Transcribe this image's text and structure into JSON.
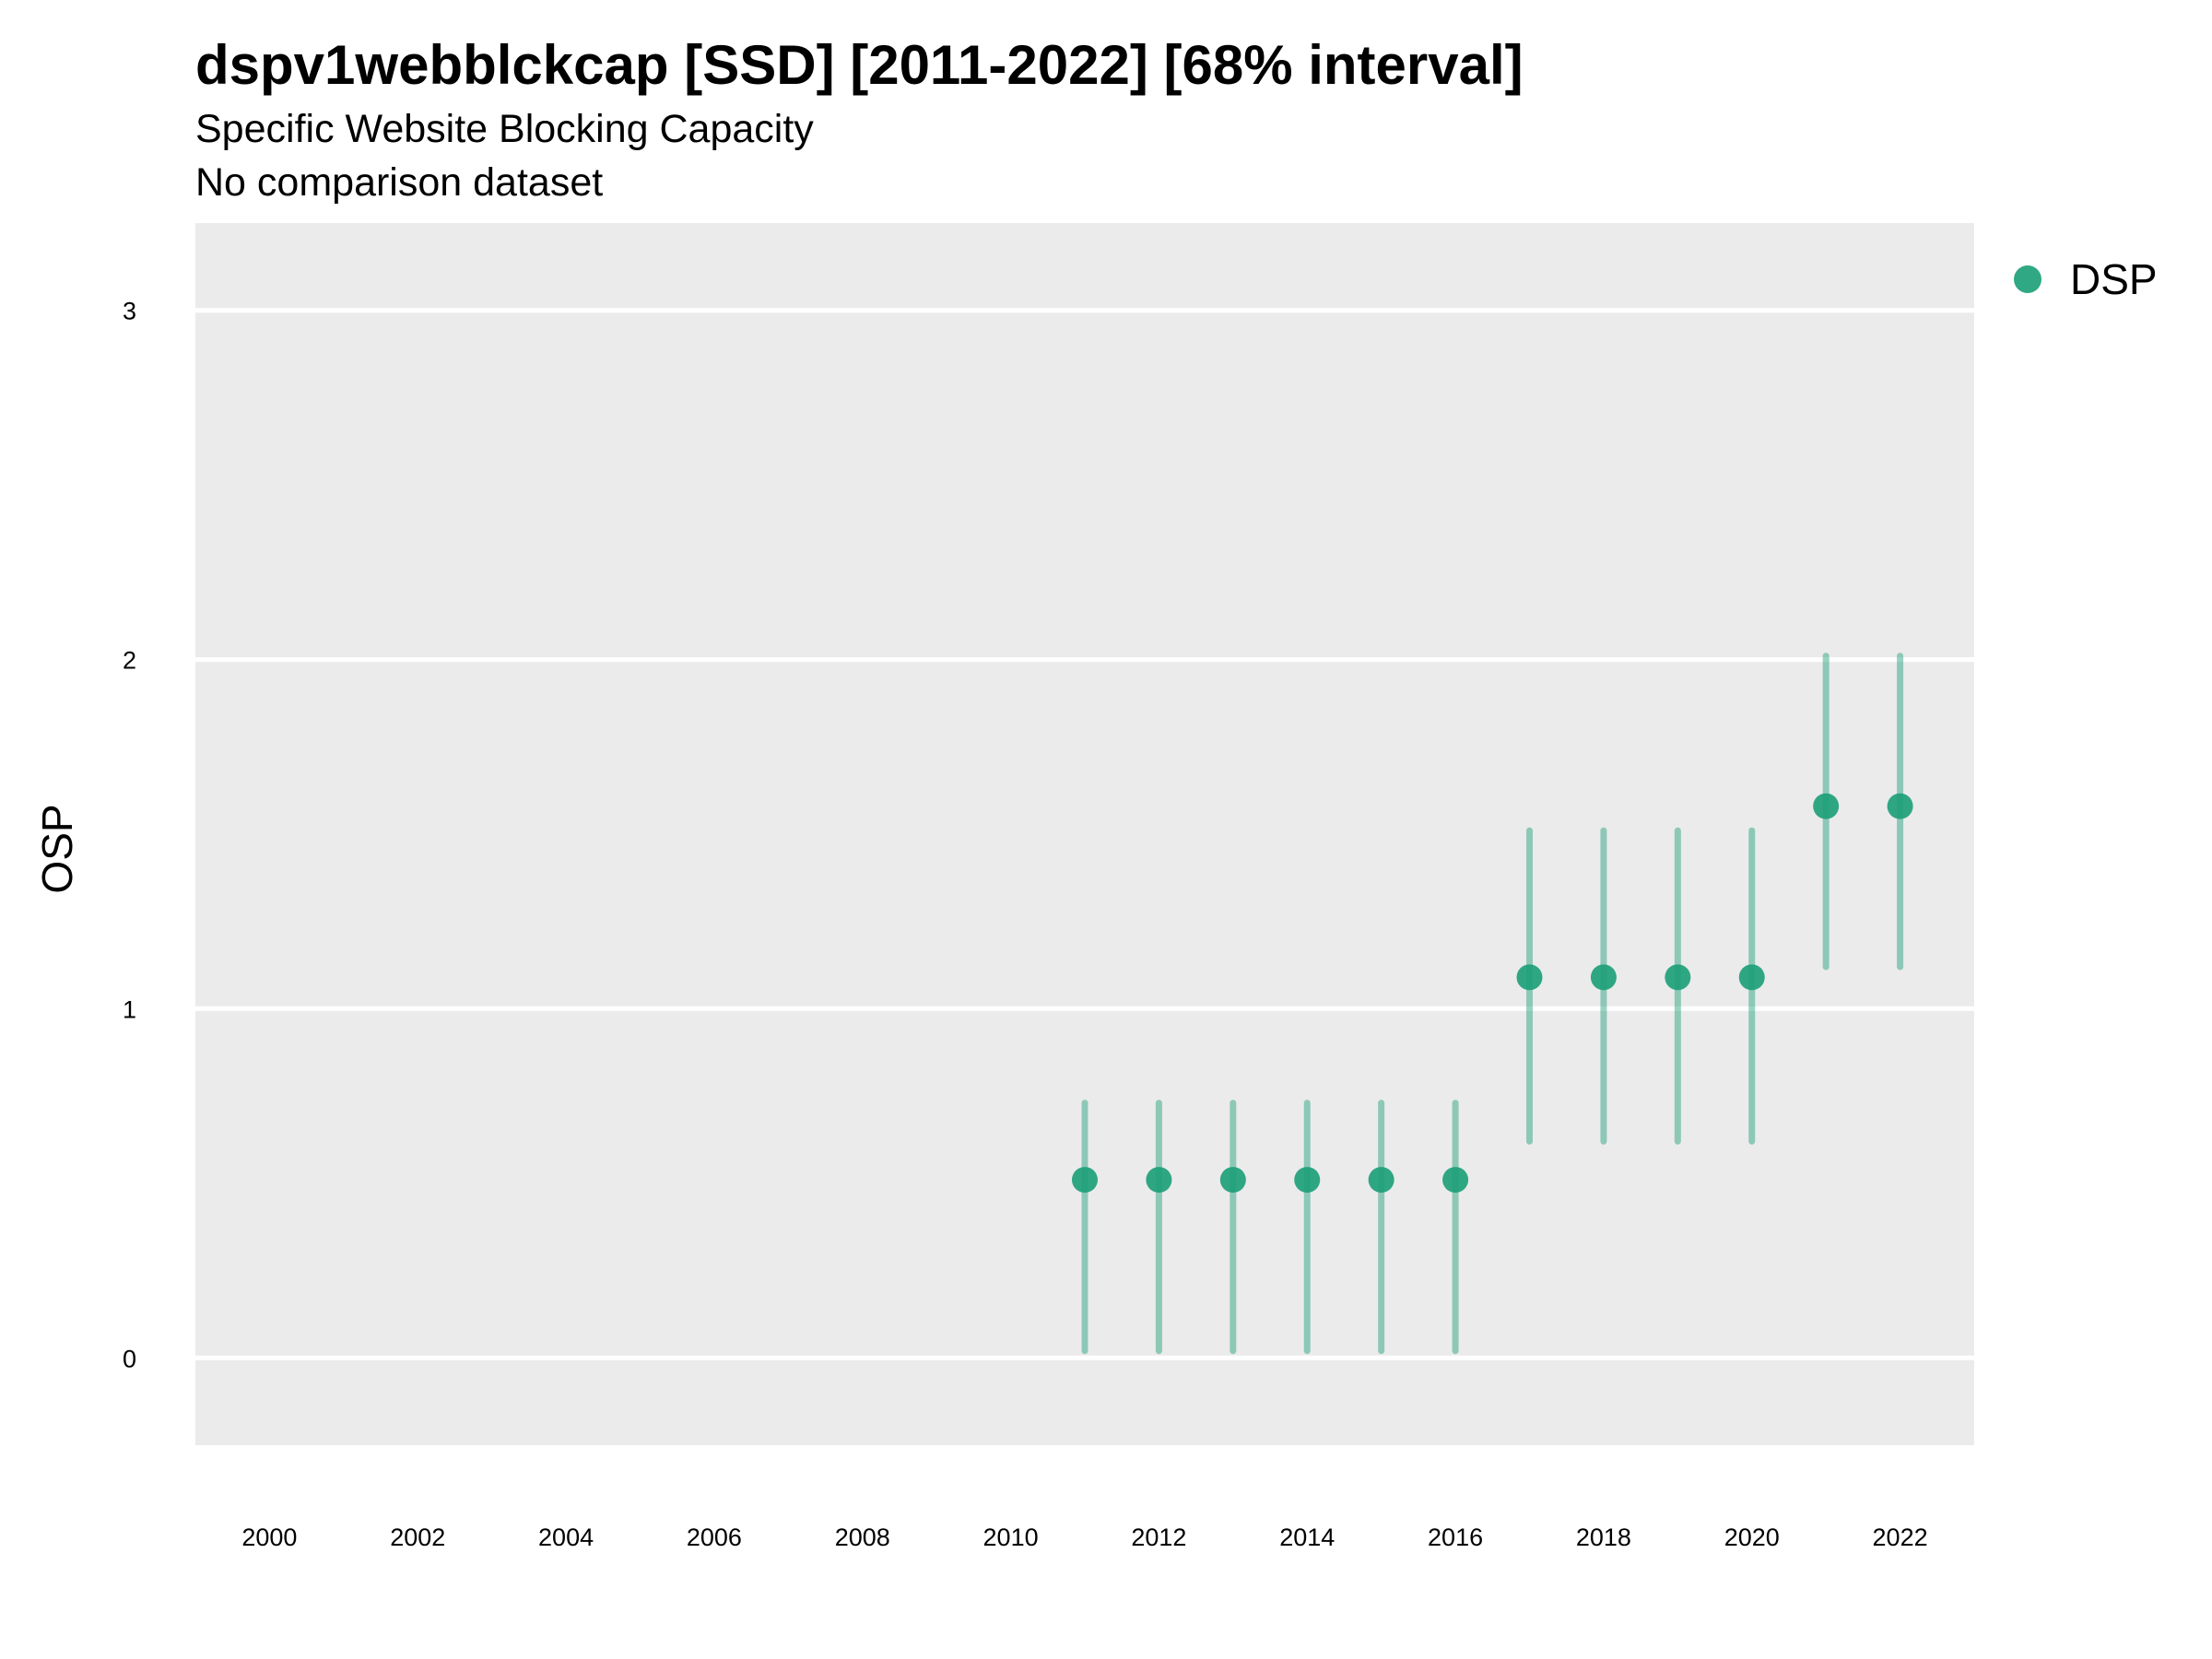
{
  "chart_data": {
    "type": "scatter",
    "title": "dspv1webblckcap [SSD] [2011-2022] [68% interval]",
    "subtitle": "Specific Website Blocking Capacity",
    "subtitle2": "No comparison dataset",
    "xlabel": "",
    "ylabel": "OSP",
    "xlim": [
      1999,
      2023
    ],
    "ylim": [
      -0.25,
      3.25
    ],
    "x_ticks": [
      2000,
      2002,
      2004,
      2006,
      2008,
      2010,
      2012,
      2014,
      2016,
      2018,
      2020,
      2022
    ],
    "y_ticks": [
      0,
      1,
      2,
      3
    ],
    "grid": true,
    "legend_position": "top-right",
    "colors": {
      "point": "#1b9e77",
      "panel": "#ebebeb",
      "grid": "#ffffff"
    },
    "series": [
      {
        "name": "DSP",
        "points": [
          {
            "x": 2011,
            "y": 0.51,
            "low": 0.02,
            "high": 0.73
          },
          {
            "x": 2012,
            "y": 0.51,
            "low": 0.02,
            "high": 0.73
          },
          {
            "x": 2013,
            "y": 0.51,
            "low": 0.02,
            "high": 0.73
          },
          {
            "x": 2014,
            "y": 0.51,
            "low": 0.02,
            "high": 0.73
          },
          {
            "x": 2015,
            "y": 0.51,
            "low": 0.02,
            "high": 0.73
          },
          {
            "x": 2016,
            "y": 0.51,
            "low": 0.02,
            "high": 0.73
          },
          {
            "x": 2017,
            "y": 1.09,
            "low": 0.62,
            "high": 1.51
          },
          {
            "x": 2018,
            "y": 1.09,
            "low": 0.62,
            "high": 1.51
          },
          {
            "x": 2019,
            "y": 1.09,
            "low": 0.62,
            "high": 1.51
          },
          {
            "x": 2020,
            "y": 1.09,
            "low": 0.62,
            "high": 1.51
          },
          {
            "x": 2021,
            "y": 1.58,
            "low": 1.12,
            "high": 2.01
          },
          {
            "x": 2022,
            "y": 1.58,
            "low": 1.12,
            "high": 2.01
          }
        ]
      }
    ]
  }
}
